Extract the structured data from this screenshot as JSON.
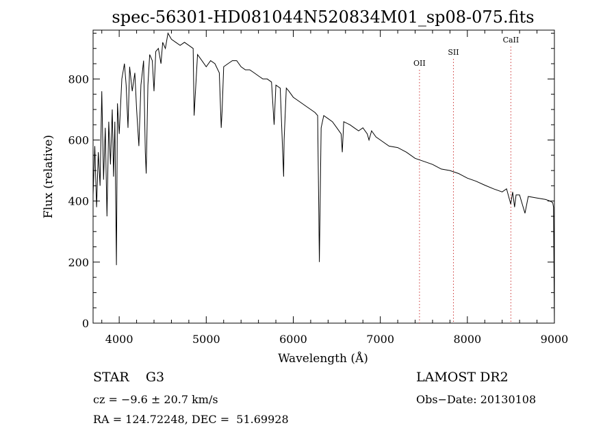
{
  "chart_data": {
    "type": "line",
    "title": "spec-56301-HD081044N520834M01_sp08-075.fits",
    "xlabel": "Wavelength (Å)",
    "ylabel": "Flux (relative)",
    "xlim": [
      3700,
      9000
    ],
    "ylim": [
      0,
      960
    ],
    "xticks": [
      4000,
      5000,
      6000,
      7000,
      8000,
      9000
    ],
    "yticks": [
      0,
      200,
      400,
      600,
      800
    ],
    "grid": false,
    "series": [
      {
        "color": "#000000",
        "x": [
          3700,
          3720,
          3740,
          3760,
          3780,
          3800,
          3820,
          3840,
          3860,
          3880,
          3900,
          3920,
          3935,
          3950,
          3968,
          3980,
          4000,
          4030,
          4060,
          4080,
          4101,
          4120,
          4150,
          4180,
          4200,
          4226,
          4250,
          4280,
          4300,
          4310,
          4330,
          4350,
          4380,
          4400,
          4420,
          4450,
          4480,
          4500,
          4530,
          4560,
          4600,
          4650,
          4700,
          4750,
          4800,
          4850,
          4861,
          4900,
          4950,
          5000,
          5050,
          5100,
          5150,
          5172,
          5183,
          5200,
          5250,
          5300,
          5350,
          5400,
          5450,
          5500,
          5550,
          5600,
          5650,
          5700,
          5750,
          5780,
          5800,
          5850,
          5889,
          5895,
          5920,
          5950,
          6000,
          6050,
          6100,
          6150,
          6200,
          6250,
          6280,
          6300,
          6320,
          6350,
          6400,
          6450,
          6500,
          6550,
          6563,
          6580,
          6650,
          6700,
          6750,
          6800,
          6850,
          6870,
          6900,
          6950,
          7000,
          7100,
          7200,
          7300,
          7400,
          7500,
          7600,
          7700,
          7800,
          7900,
          8000,
          8100,
          8200,
          8300,
          8400,
          8450,
          8498,
          8520,
          8542,
          8560,
          8600,
          8662,
          8700,
          8800,
          8900,
          8950,
          8980,
          8990,
          9000
        ],
        "y": [
          420,
          580,
          380,
          560,
          450,
          760,
          470,
          640,
          350,
          660,
          520,
          700,
          480,
          660,
          190,
          720,
          620,
          800,
          850,
          780,
          640,
          840,
          760,
          820,
          700,
          580,
          780,
          860,
          560,
          490,
          780,
          880,
          860,
          760,
          890,
          900,
          850,
          920,
          900,
          950,
          930,
          920,
          910,
          920,
          910,
          900,
          680,
          880,
          860,
          840,
          860,
          850,
          820,
          640,
          700,
          840,
          850,
          860,
          860,
          840,
          830,
          830,
          820,
          810,
          800,
          800,
          790,
          650,
          780,
          770,
          480,
          600,
          770,
          760,
          740,
          730,
          720,
          710,
          700,
          690,
          680,
          200,
          640,
          680,
          670,
          660,
          640,
          620,
          560,
          660,
          650,
          640,
          630,
          640,
          620,
          600,
          630,
          610,
          600,
          580,
          575,
          560,
          540,
          530,
          520,
          505,
          500,
          490,
          475,
          465,
          452,
          440,
          430,
          440,
          390,
          430,
          380,
          420,
          420,
          360,
          415,
          410,
          405,
          400,
          395,
          380,
          0
        ]
      }
    ],
    "lines": [
      {
        "label": "OII",
        "x": 7450
      },
      {
        "label": "SII",
        "x": 7840
      },
      {
        "label": "CaII",
        "x": 8500
      }
    ]
  },
  "info": {
    "object": "STAR    G3",
    "cz": "cz = −9.6 ± 20.7 km/s",
    "radec": "RA = 124.72248, DEC =  51.69928",
    "survey": "LAMOST DR2",
    "obsdate": "Obs−Date: 20130108"
  }
}
